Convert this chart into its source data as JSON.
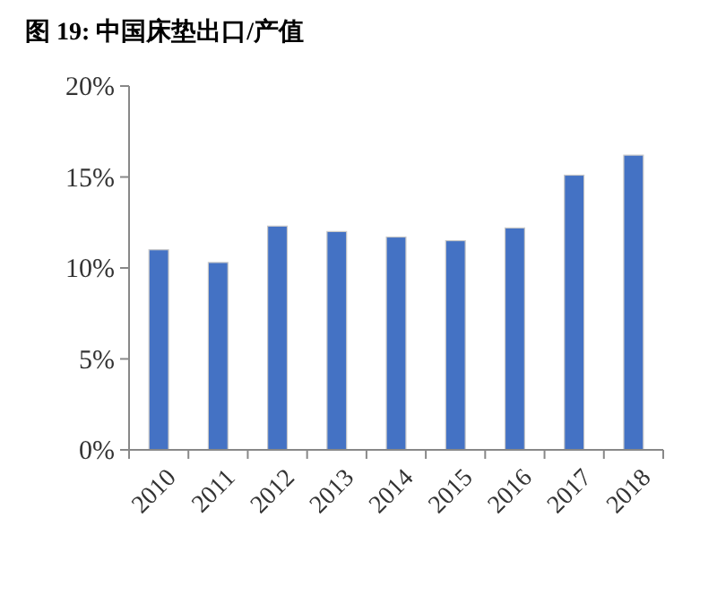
{
  "chart_data": {
    "type": "bar",
    "title": "图  19:  中国床垫出口/产值",
    "categories": [
      "2010",
      "2011",
      "2012",
      "2013",
      "2014",
      "2015",
      "2016",
      "2017",
      "2018"
    ],
    "values": [
      11.0,
      10.3,
      12.3,
      12.0,
      11.7,
      11.5,
      12.2,
      15.1,
      16.2
    ],
    "color": "#4472c4",
    "ylim": [
      0,
      20
    ],
    "yticks": [
      {
        "value": 0,
        "label": "0%"
      },
      {
        "value": 5,
        "label": "5%"
      },
      {
        "value": 10,
        "label": "10%"
      },
      {
        "value": 15,
        "label": "15%"
      },
      {
        "value": 20,
        "label": "20%"
      }
    ],
    "grid": false
  }
}
